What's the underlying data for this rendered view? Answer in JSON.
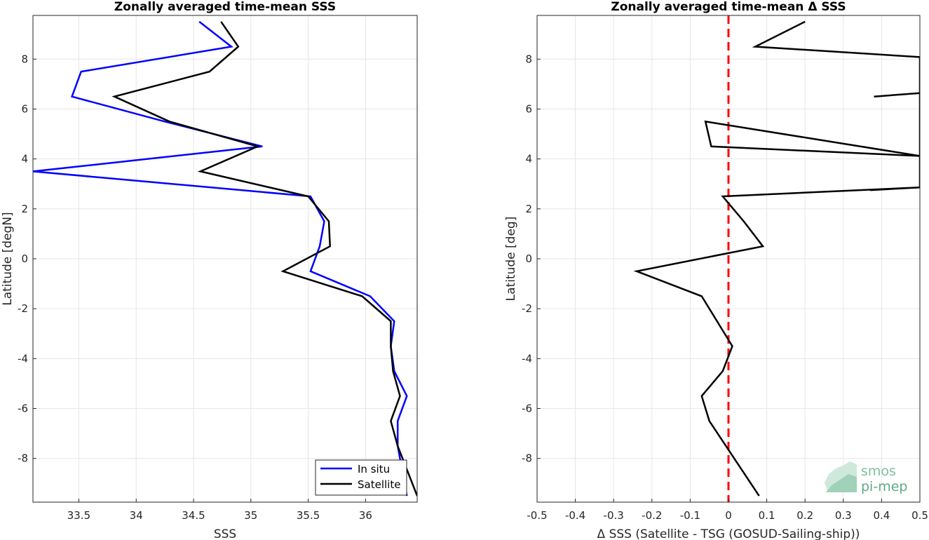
{
  "chart_data": [
    {
      "type": "line",
      "title": "Zonally averaged time-mean SSS",
      "xlabel": "SSS",
      "ylabel": "Latitude [degN]",
      "xlim": [
        33.1,
        36.45
      ],
      "ylim": [
        -9.75,
        9.75
      ],
      "xticks": [
        33.5,
        34,
        34.5,
        35,
        35.5,
        36
      ],
      "yticks": [
        -8,
        -6,
        -4,
        -2,
        0,
        2,
        4,
        6,
        8
      ],
      "grid": true,
      "legend": "bottom-right",
      "series": [
        {
          "name": "In situ",
          "color": "#0000ff",
          "x": [
            34.55,
            34.83,
            33.52,
            33.44,
            34.25,
            35.1,
            33.1,
            35.52,
            35.64,
            35.6,
            35.52,
            36.04,
            36.25,
            36.22,
            36.25,
            36.36,
            36.28,
            36.28,
            36.36
          ],
          "y": [
            9.5,
            8.5,
            7.5,
            6.5,
            5.5,
            4.5,
            3.5,
            2.5,
            1.5,
            0.5,
            -0.5,
            -1.5,
            -2.5,
            -3.5,
            -4.5,
            -5.5,
            -6.5,
            -7.5,
            -9.5
          ]
        },
        {
          "name": "Satellite",
          "color": "#000000",
          "x": [
            34.74,
            34.89,
            34.64,
            33.81,
            34.29,
            35.06,
            34.56,
            35.5,
            35.68,
            35.69,
            35.28,
            35.97,
            36.22,
            36.22,
            36.24,
            36.3,
            36.22,
            36.28,
            36.45
          ],
          "y": [
            9.5,
            8.5,
            7.5,
            6.5,
            5.5,
            4.5,
            3.5,
            2.5,
            1.5,
            0.5,
            -0.5,
            -1.5,
            -2.5,
            -3.5,
            -4.5,
            -5.5,
            -6.5,
            -7.5,
            -9.5
          ]
        }
      ]
    },
    {
      "type": "line",
      "title": "Zonally averaged time-mean Δ SSS",
      "xlabel": "Δ SSS (Satellite - TSG (GOSUD-Sailing-ship))",
      "ylabel": "Latitude [deg]",
      "xlim": [
        -0.5,
        0.5
      ],
      "ylim": [
        -9.75,
        9.75
      ],
      "xticks": [
        -0.5,
        -0.4,
        -0.3,
        -0.2,
        -0.1,
        0,
        0.1,
        0.2,
        0.3,
        0.4,
        0.5
      ],
      "yticks": [
        -8,
        -6,
        -4,
        -2,
        0,
        2,
        4,
        6,
        8
      ],
      "grid": true,
      "reference_line": {
        "x": 0,
        "color": "#ff0000",
        "style": "dashed"
      },
      "series": [
        {
          "color": "#000000",
          "x": [
            0.2,
            0.07,
            0.5,
            0.5,
            0.38,
            0.5,
            0.5,
            -0.06,
            -0.045,
            0.5,
            0.5,
            0.37,
            0.5,
            0.5,
            -0.015,
            0.04,
            0.09,
            -0.24,
            -0.07,
            0.01,
            -0.015,
            -0.07,
            -0.05,
            0.08
          ],
          "y": [
            9.5,
            8.5,
            8.08,
            6.64,
            6.5,
            6.64,
            4.12,
            5.5,
            4.5,
            4.12,
            2.86,
            2.75,
            2.86,
            2.86,
            2.5,
            1.5,
            0.5,
            -0.5,
            -1.5,
            -3.5,
            -4.5,
            -5.5,
            -6.5,
            -9.5
          ]
        }
      ]
    }
  ],
  "logo": {
    "line1": "smos",
    "line2": "pi-mep"
  }
}
